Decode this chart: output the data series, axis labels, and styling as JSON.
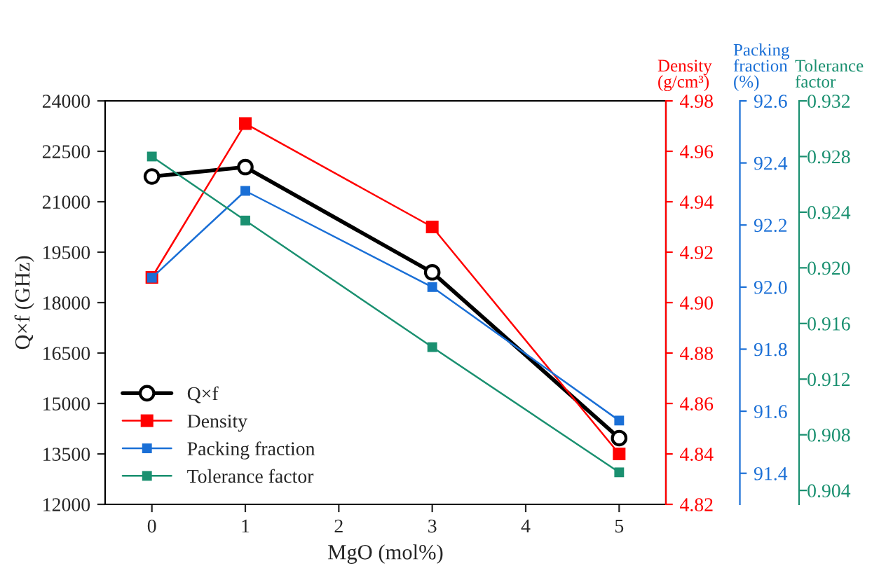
{
  "chart_data": [
    {
      "type": "line",
      "xlabel": "MgO (mol%)",
      "ylabel": "Q×f (GHz)",
      "y2label": "Density\n(g/cm³)",
      "y3label": "Packing\nfraction\n(%)",
      "x": [
        0,
        1,
        3,
        5
      ],
      "xlim": [
        -0.5,
        5.5
      ],
      "xticks": [
        0,
        1,
        2,
        3,
        4,
        5
      ],
      "ylim": [
        12000,
        24000
      ],
      "yticks": [
        12000,
        13500,
        15000,
        16500,
        18000,
        19500,
        21000,
        22500,
        24000
      ],
      "y2lim": [
        4.82,
        4.98
      ],
      "y2ticks": [
        {
          "value": 4.82,
          "label": "4.82"
        },
        {
          "value": 4.84,
          "label": "4.84"
        },
        {
          "value": 4.86,
          "label": "4.86"
        },
        {
          "value": 4.88,
          "label": "4.88"
        },
        {
          "value": 4.9,
          "label": "4.90"
        },
        {
          "value": 4.92,
          "label": "4.92"
        },
        {
          "value": 4.94,
          "label": "4.94"
        },
        {
          "value": 4.96,
          "label": "4.96"
        },
        {
          "value": 4.98,
          "label": "4.98"
        }
      ],
      "y3lim": [
        91.3,
        92.6
      ],
      "y3ticks": [
        91.4,
        91.6,
        91.8,
        {
          "value": 92.0,
          "label": "92.0"
        },
        92.2,
        92.4,
        92.6
      ],
      "grid": false,
      "legend": "bottom left",
      "series": [
        {
          "name": "Q×f",
          "color": "#000000",
          "marker": "circle",
          "values": [
            21750,
            22030,
            18900,
            13970
          ]
        },
        {
          "name": "Density",
          "color": "#ff0000",
          "marker": "square",
          "axis": "y2",
          "values": [
            4.91,
            4.971,
            4.93,
            4.84
          ]
        },
        {
          "name": "Packing fraction",
          "color": "#1a6fd6",
          "marker": "square",
          "axis": "y3",
          "values": [
            92.03,
            92.31,
            92.0,
            91.57
          ]
        }
      ]
    },
    {
      "type": "line",
      "ylabel": "Tolerance\nfactor",
      "x": [
        0,
        1,
        3,
        5
      ],
      "xlim": [
        -0.5,
        5.5
      ],
      "tick_labels": "y",
      "ylim": [
        0.903,
        0.932
      ],
      "yticks": [
        0.904,
        0.908,
        0.912,
        0.916,
        {
          "value": 0.92,
          "label": "0.920"
        },
        0.924,
        0.928,
        0.932
      ],
      "grid": false,
      "series": [
        {
          "name": "Tolerance factor",
          "color": "#1a9070",
          "marker": "square",
          "values": [
            0.928,
            0.9234,
            0.9143,
            0.9053
          ]
        }
      ]
    }
  ]
}
